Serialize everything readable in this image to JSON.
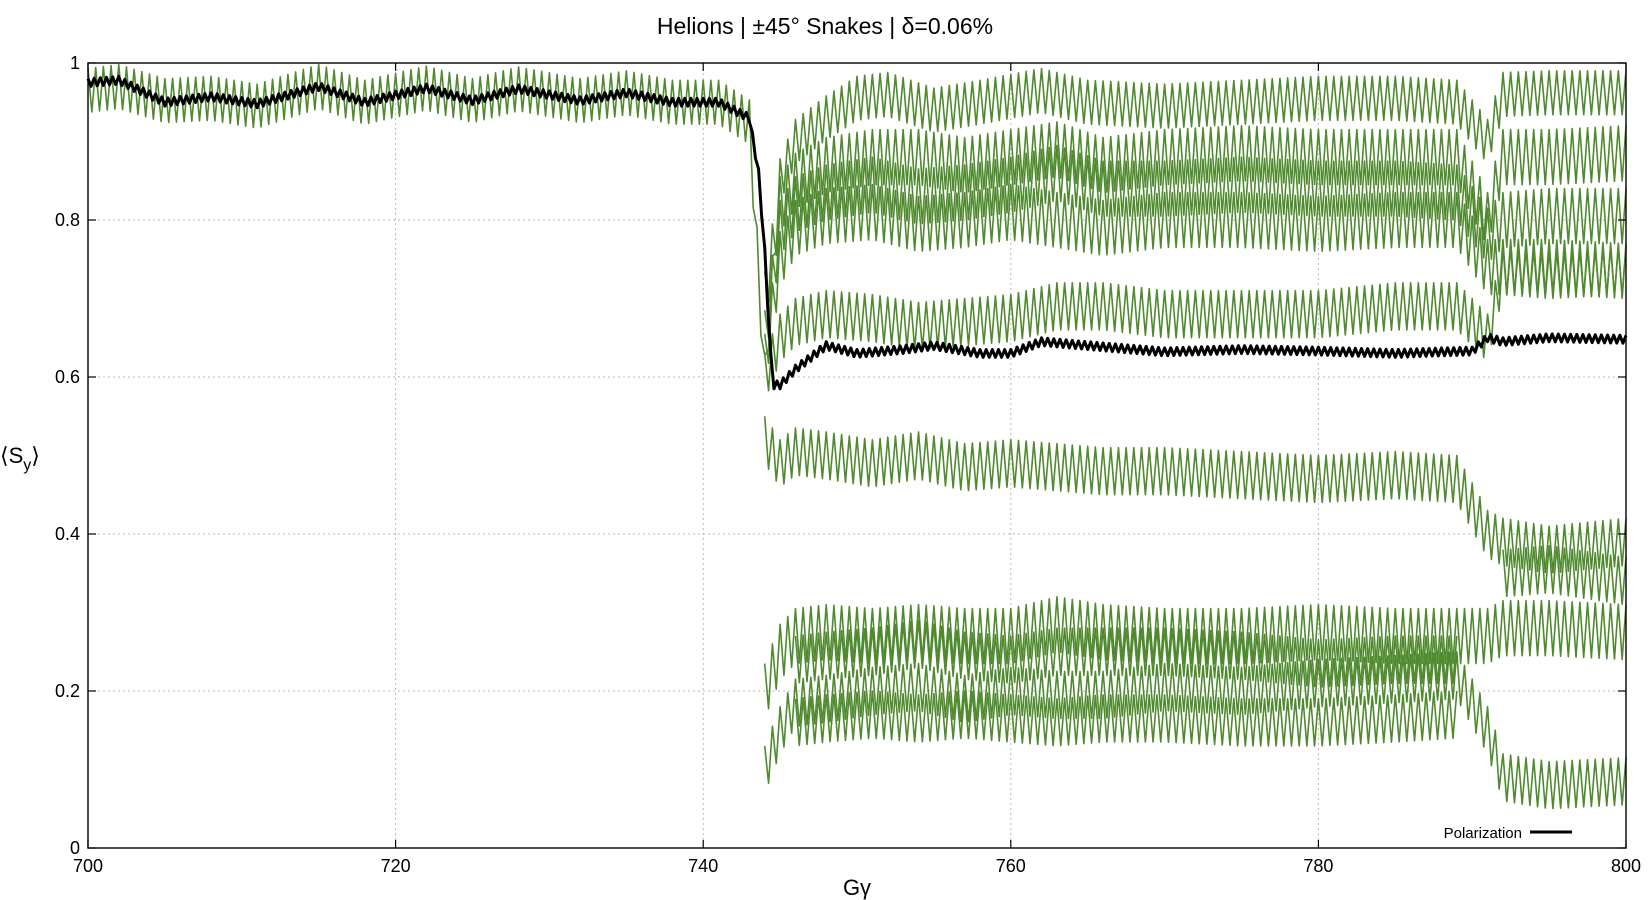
{
  "chart_data": {
    "type": "line",
    "title": "Helions | ±45° Snakes | δ=0.06%",
    "xlabel": "Gγ",
    "ylabel": "⟨S",
    "ylabel_sub": "y",
    "ylabel_close": "⟩",
    "xlim": [
      700,
      800
    ],
    "ylim": [
      0,
      1
    ],
    "x_ticks": [
      700,
      720,
      740,
      760,
      780,
      800
    ],
    "x_tick_labels": [
      "700",
      "720",
      "740",
      "760",
      "780",
      "800"
    ],
    "y_ticks": [
      0,
      0.2,
      0.4,
      0.6,
      0.8,
      1
    ],
    "y_tick_labels": [
      "0",
      "0.2",
      "0.4",
      "0.6",
      "0.8",
      "1"
    ],
    "grid": true,
    "legend": {
      "position": "bottom-right",
      "entries": [
        "Polarization"
      ]
    },
    "colors": {
      "particles": "#4f8a2f",
      "polarization": "#000000",
      "grid": "#b8b8b8"
    },
    "series": [
      {
        "name": "Polarization",
        "role": "mean",
        "band": 0.005,
        "x": [
          700,
          702,
          705,
          708,
          711,
          715,
          718,
          722,
          725,
          728,
          732,
          735,
          738,
          741,
          743,
          743.6,
          744.0,
          744.5,
          745,
          746,
          748,
          750,
          753,
          755,
          758,
          760,
          762,
          765,
          770,
          775,
          780,
          785,
          788,
          790,
          791,
          792,
          795,
          800
        ],
        "y": [
          0.975,
          0.978,
          0.95,
          0.957,
          0.948,
          0.97,
          0.95,
          0.968,
          0.952,
          0.967,
          0.952,
          0.962,
          0.95,
          0.95,
          0.93,
          0.86,
          0.76,
          0.59,
          0.59,
          0.61,
          0.64,
          0.63,
          0.635,
          0.64,
          0.63,
          0.63,
          0.645,
          0.64,
          0.632,
          0.635,
          0.633,
          0.63,
          0.632,
          0.633,
          0.65,
          0.645,
          0.65,
          0.648
        ]
      },
      {
        "name": "",
        "role": "particle",
        "band": 0.028,
        "x": [
          700,
          702,
          705,
          708,
          711,
          715,
          718,
          722,
          725,
          728,
          732,
          735,
          738,
          741,
          743,
          744,
          745,
          746,
          748,
          750,
          752,
          755,
          758,
          762,
          765,
          770,
          775,
          780,
          785,
          789,
          791,
          792,
          795,
          800
        ],
        "y": [
          0.965,
          0.97,
          0.952,
          0.955,
          0.945,
          0.97,
          0.95,
          0.968,
          0.952,
          0.967,
          0.952,
          0.962,
          0.95,
          0.95,
          0.925,
          0.6,
          0.85,
          0.9,
          0.93,
          0.955,
          0.96,
          0.94,
          0.95,
          0.965,
          0.95,
          0.945,
          0.95,
          0.955,
          0.955,
          0.95,
          0.9,
          0.96,
          0.962,
          0.962
        ]
      },
      {
        "name": "",
        "role": "particle",
        "band": 0.035,
        "x": [
          744,
          745,
          746,
          748,
          751,
          754,
          757,
          760,
          763,
          766,
          770,
          775,
          780,
          785,
          789,
          791,
          792,
          795,
          800
        ],
        "y": [
          0.7,
          0.82,
          0.85,
          0.87,
          0.88,
          0.88,
          0.87,
          0.88,
          0.89,
          0.87,
          0.88,
          0.885,
          0.88,
          0.88,
          0.88,
          0.8,
          0.88,
          0.88,
          0.885
        ]
      },
      {
        "name": "",
        "role": "particle",
        "band": 0.035,
        "x": [
          744,
          745,
          746,
          748,
          751,
          754,
          757,
          760,
          763,
          766,
          770,
          775,
          780,
          785,
          789,
          791,
          792,
          795,
          800
        ],
        "y": [
          0.65,
          0.79,
          0.82,
          0.835,
          0.845,
          0.83,
          0.835,
          0.845,
          0.86,
          0.84,
          0.84,
          0.845,
          0.84,
          0.84,
          0.835,
          0.78,
          0.8,
          0.805,
          0.805
        ]
      },
      {
        "name": "",
        "role": "particle",
        "band": 0.035,
        "x": [
          744,
          745,
          746,
          748,
          751,
          754,
          757,
          760,
          763,
          766,
          770,
          775,
          780,
          785,
          789,
          791,
          792,
          795,
          800
        ],
        "y": [
          0.62,
          0.75,
          0.79,
          0.805,
          0.81,
          0.795,
          0.8,
          0.81,
          0.8,
          0.79,
          0.8,
          0.8,
          0.795,
          0.8,
          0.8,
          0.74,
          0.74,
          0.74,
          0.735
        ]
      },
      {
        "name": "",
        "role": "particle",
        "band": 0.03,
        "x": [
          744,
          745,
          746,
          748,
          751,
          754,
          757,
          760,
          763,
          766,
          770,
          775,
          780,
          785,
          789,
          791,
          792,
          795,
          800
        ],
        "y": [
          0.6,
          0.65,
          0.67,
          0.68,
          0.675,
          0.665,
          0.67,
          0.675,
          0.69,
          0.69,
          0.68,
          0.68,
          0.68,
          0.69,
          0.69,
          0.65,
          0.735,
          0.73,
          0.735
        ]
      },
      {
        "name": "",
        "role": "particle",
        "band": 0.03,
        "x": [
          744,
          745,
          746,
          748,
          751,
          754,
          757,
          760,
          763,
          766,
          770,
          775,
          780,
          785,
          789,
          791,
          792,
          795,
          800
        ],
        "y": [
          0.52,
          0.49,
          0.505,
          0.5,
          0.49,
          0.5,
          0.485,
          0.49,
          0.485,
          0.48,
          0.48,
          0.475,
          0.47,
          0.475,
          0.47,
          0.4,
          0.39,
          0.38,
          0.39
        ]
      },
      {
        "name": "",
        "role": "particle",
        "band": 0.03,
        "x": [
          792,
          795,
          800
        ],
        "y": [
          0.35,
          0.355,
          0.34
        ]
      },
      {
        "name": "",
        "role": "particle",
        "band": 0.035,
        "x": [
          744,
          745,
          746,
          748,
          751,
          754,
          757,
          760,
          763,
          766,
          770,
          775,
          780,
          785,
          789,
          791,
          792,
          795,
          800
        ],
        "y": [
          0.2,
          0.25,
          0.27,
          0.275,
          0.27,
          0.275,
          0.27,
          0.27,
          0.285,
          0.275,
          0.27,
          0.27,
          0.275,
          0.27,
          0.27,
          0.27,
          0.28,
          0.28,
          0.275
        ]
      },
      {
        "name": "",
        "role": "particle",
        "band": 0.03,
        "x": [
          746,
          748,
          751,
          754,
          757,
          760,
          763,
          766,
          770,
          775,
          780,
          785,
          789
        ],
        "y": [
          0.24,
          0.245,
          0.25,
          0.26,
          0.245,
          0.24,
          0.25,
          0.25,
          0.25,
          0.245,
          0.235,
          0.24,
          0.24
        ]
      },
      {
        "name": "",
        "role": "particle",
        "band": 0.03,
        "x": [
          744,
          745,
          746,
          748,
          751,
          754,
          757,
          760,
          763,
          766,
          770,
          775,
          780,
          785,
          789,
          791,
          792,
          795,
          800
        ],
        "y": [
          0.1,
          0.15,
          0.185,
          0.19,
          0.2,
          0.205,
          0.19,
          0.2,
          0.195,
          0.195,
          0.205,
          0.2,
          0.21,
          0.215,
          0.22,
          0.15,
          0.09,
          0.08,
          0.085
        ]
      },
      {
        "name": "",
        "role": "particle",
        "band": 0.03,
        "x": [
          746,
          748,
          751,
          754,
          757,
          760,
          763,
          766,
          770,
          775,
          780,
          785,
          789
        ],
        "y": [
          0.16,
          0.165,
          0.17,
          0.165,
          0.17,
          0.165,
          0.16,
          0.165,
          0.165,
          0.16,
          0.16,
          0.165,
          0.17
        ]
      }
    ]
  }
}
